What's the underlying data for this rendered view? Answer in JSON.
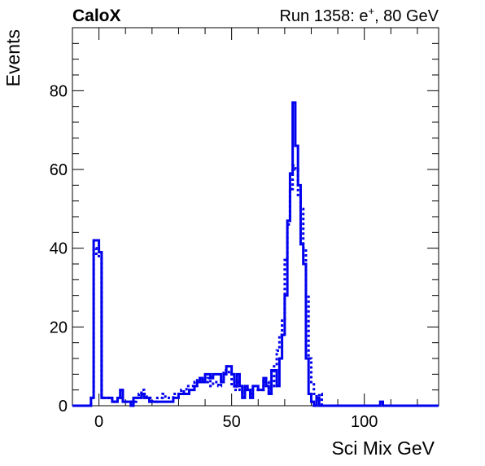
{
  "header": {
    "left": "CaloX",
    "right_prefix": "Run 1358: e",
    "right_sup": "+",
    "right_suffix": ", 80 GeV"
  },
  "chart_data": {
    "type": "line",
    "title": "",
    "xlabel": "Sci Mix GeV",
    "ylabel": "Events",
    "xlim": [
      -10,
      128
    ],
    "ylim": [
      0,
      96
    ],
    "xticks": [
      0,
      50,
      100
    ],
    "yticks": [
      0,
      20,
      40,
      60,
      80
    ],
    "grid": false,
    "legend": "none",
    "series": [
      {
        "style": "solid",
        "color": "#0000ee",
        "steps": [
          [
            -10,
            0
          ],
          [
            -3,
            2
          ],
          [
            -2,
            42
          ],
          [
            0,
            39
          ],
          [
            1,
            2
          ],
          [
            3,
            2
          ],
          [
            4,
            2
          ],
          [
            5,
            1
          ],
          [
            6,
            1
          ],
          [
            7,
            2
          ],
          [
            8,
            4
          ],
          [
            9,
            1
          ],
          [
            11,
            1
          ],
          [
            12,
            0
          ],
          [
            13,
            2
          ],
          [
            15,
            2
          ],
          [
            16,
            3
          ],
          [
            17,
            2
          ],
          [
            19,
            1
          ],
          [
            21,
            1
          ],
          [
            23,
            1
          ],
          [
            25,
            1
          ],
          [
            26,
            1
          ],
          [
            27,
            1
          ],
          [
            28,
            2
          ],
          [
            30,
            3
          ],
          [
            32,
            3
          ],
          [
            34,
            4
          ],
          [
            35,
            4
          ],
          [
            36,
            5
          ],
          [
            37,
            6
          ],
          [
            38,
            7
          ],
          [
            39,
            6
          ],
          [
            40,
            8
          ],
          [
            41,
            8
          ],
          [
            42,
            7
          ],
          [
            43,
            8
          ],
          [
            44,
            8
          ],
          [
            45,
            8
          ],
          [
            46,
            6
          ],
          [
            47,
            8
          ],
          [
            48,
            10
          ],
          [
            49,
            10
          ],
          [
            50,
            8
          ],
          [
            51,
            5
          ],
          [
            52,
            8
          ],
          [
            53,
            5
          ],
          [
            54,
            2
          ],
          [
            55,
            5
          ],
          [
            56,
            4
          ],
          [
            57,
            2
          ],
          [
            58,
            5
          ],
          [
            59,
            5
          ],
          [
            60,
            4
          ],
          [
            61,
            4
          ],
          [
            62,
            7
          ],
          [
            63,
            5
          ],
          [
            64,
            3
          ],
          [
            65,
            9
          ],
          [
            66,
            9
          ],
          [
            67,
            5
          ],
          [
            68,
            12
          ],
          [
            69,
            18
          ],
          [
            70,
            28
          ],
          [
            71,
            47
          ],
          [
            72,
            59
          ],
          [
            73,
            77
          ],
          [
            74,
            66
          ],
          [
            75,
            56
          ],
          [
            76,
            41
          ],
          [
            77,
            36
          ],
          [
            78,
            12
          ],
          [
            79,
            3
          ],
          [
            80,
            1
          ],
          [
            81,
            0
          ],
          [
            82,
            2
          ],
          [
            83,
            0
          ],
          [
            106,
            1
          ],
          [
            107,
            0
          ],
          [
            128,
            0
          ]
        ]
      },
      {
        "style": "dotted",
        "color": "#0000ee",
        "steps": [
          [
            -10,
            0
          ],
          [
            -3,
            2
          ],
          [
            -2,
            40
          ],
          [
            -1,
            38
          ],
          [
            0,
            38
          ],
          [
            1,
            2
          ],
          [
            3,
            2
          ],
          [
            4,
            2
          ],
          [
            5,
            1
          ],
          [
            7,
            2
          ],
          [
            8,
            2
          ],
          [
            9,
            1
          ],
          [
            11,
            1
          ],
          [
            12,
            1
          ],
          [
            13,
            1
          ],
          [
            14,
            2
          ],
          [
            15,
            3
          ],
          [
            16,
            4
          ],
          [
            17,
            3
          ],
          [
            18,
            2
          ],
          [
            20,
            1
          ],
          [
            22,
            2
          ],
          [
            23,
            2
          ],
          [
            24,
            3
          ],
          [
            25,
            2
          ],
          [
            26,
            2
          ],
          [
            27,
            2
          ],
          [
            28,
            3
          ],
          [
            29,
            3
          ],
          [
            30,
            3
          ],
          [
            31,
            4
          ],
          [
            32,
            3
          ],
          [
            33,
            5
          ],
          [
            34,
            5
          ],
          [
            35,
            5
          ],
          [
            36,
            6
          ],
          [
            37,
            7
          ],
          [
            38,
            6
          ],
          [
            39,
            7
          ],
          [
            40,
            6
          ],
          [
            41,
            7
          ],
          [
            42,
            5
          ],
          [
            43,
            6
          ],
          [
            44,
            6
          ],
          [
            45,
            5
          ],
          [
            46,
            7
          ],
          [
            47,
            9
          ],
          [
            48,
            9
          ],
          [
            49,
            8
          ],
          [
            50,
            5
          ],
          [
            51,
            4
          ],
          [
            52,
            6
          ],
          [
            53,
            4
          ],
          [
            54,
            3
          ],
          [
            55,
            4
          ],
          [
            56,
            4
          ],
          [
            57,
            3
          ],
          [
            58,
            4
          ],
          [
            59,
            4
          ],
          [
            60,
            4
          ],
          [
            61,
            4
          ],
          [
            62,
            6
          ],
          [
            63,
            6
          ],
          [
            64,
            3
          ],
          [
            65,
            5
          ],
          [
            66,
            10
          ],
          [
            67,
            14
          ],
          [
            68,
            18
          ],
          [
            69,
            22
          ],
          [
            70,
            37
          ],
          [
            71,
            46
          ],
          [
            72,
            55
          ],
          [
            73,
            61
          ],
          [
            74,
            60
          ],
          [
            75,
            53
          ],
          [
            76,
            50
          ],
          [
            77,
            40
          ],
          [
            78,
            28
          ],
          [
            79,
            12
          ],
          [
            80,
            6
          ],
          [
            81,
            3
          ],
          [
            82,
            1
          ],
          [
            83,
            3
          ],
          [
            84,
            0
          ],
          [
            106,
            0
          ],
          [
            128,
            0
          ]
        ]
      }
    ]
  }
}
